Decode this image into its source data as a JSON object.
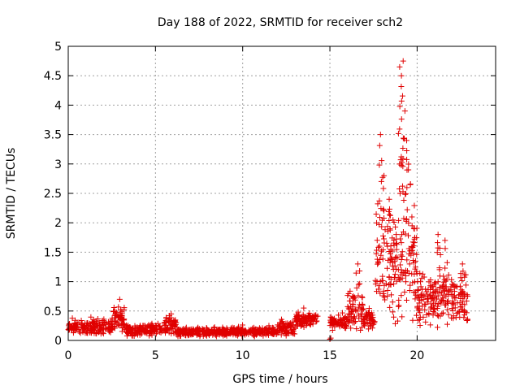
{
  "chart_data": {
    "type": "scatter",
    "title": "Day 188 of 2022, SRMTID for receiver sch2",
    "xlabel": "GPS time / hours",
    "ylabel": "SRMTID / TECUs",
    "xlim": [
      0,
      24.5
    ],
    "ylim": [
      0,
      5
    ],
    "xticks": [
      0,
      5,
      10,
      15,
      20
    ],
    "yticks": [
      0,
      0.5,
      1,
      1.5,
      2,
      2.5,
      3,
      3.5,
      4,
      4.5,
      5
    ],
    "grid": true,
    "marker": "+",
    "color": "#e00000",
    "segments": [
      {
        "t0": 0.0,
        "t1": 2.5,
        "base": 0.22,
        "spread": 0.1
      },
      {
        "t0": 2.5,
        "t1": 3.3,
        "base": 0.35,
        "spread": 0.18
      },
      {
        "t0": 3.3,
        "t1": 5.5,
        "base": 0.18,
        "spread": 0.08
      },
      {
        "t0": 5.5,
        "t1": 6.2,
        "base": 0.25,
        "spread": 0.12
      },
      {
        "t0": 6.2,
        "t1": 12.0,
        "base": 0.14,
        "spread": 0.06
      },
      {
        "t0": 12.0,
        "t1": 13.0,
        "base": 0.2,
        "spread": 0.1
      },
      {
        "t0": 13.0,
        "t1": 14.3,
        "base": 0.35,
        "spread": 0.12
      },
      {
        "t0": 15.0,
        "t1": 16.0,
        "base": 0.3,
        "spread": 0.1
      },
      {
        "t0": 16.0,
        "t1": 16.9,
        "base": 0.5,
        "spread": 0.25
      },
      {
        "t0": 16.9,
        "t1": 17.6,
        "base": 0.35,
        "spread": 0.15
      },
      {
        "t0": 17.6,
        "t1": 20.0,
        "base": 1.2,
        "spread": 0.8
      },
      {
        "t0": 20.0,
        "t1": 22.9,
        "base": 0.7,
        "spread": 0.35
      }
    ],
    "peaks": [
      {
        "x": 2.95,
        "y": 0.7
      },
      {
        "x": 5.9,
        "y": 0.45
      },
      {
        "x": 13.5,
        "y": 0.55
      },
      {
        "x": 16.6,
        "y": 1.3
      },
      {
        "x": 17.9,
        "y": 3.5
      },
      {
        "x": 18.1,
        "y": 2.8
      },
      {
        "x": 18.4,
        "y": 2.4
      },
      {
        "x": 18.8,
        "y": 1.8
      },
      {
        "x": 19.0,
        "y": 4.65
      },
      {
        "x": 19.1,
        "y": 4.5
      },
      {
        "x": 19.2,
        "y": 4.75
      },
      {
        "x": 19.3,
        "y": 3.9
      },
      {
        "x": 19.4,
        "y": 3.4
      },
      {
        "x": 19.5,
        "y": 2.9
      },
      {
        "x": 19.7,
        "y": 2.1
      },
      {
        "x": 21.2,
        "y": 1.8
      },
      {
        "x": 21.6,
        "y": 1.7
      },
      {
        "x": 22.6,
        "y": 1.3
      }
    ],
    "gaps": [
      [
        14.3,
        15.0
      ]
    ]
  }
}
